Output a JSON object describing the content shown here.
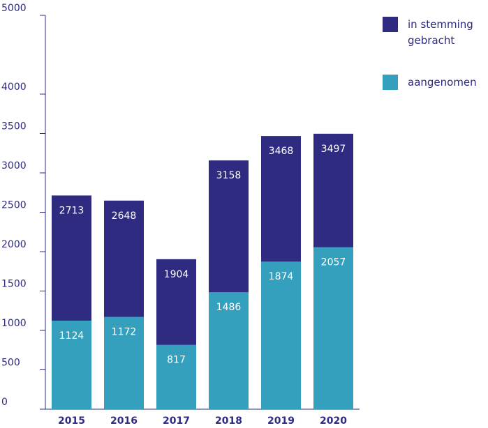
{
  "chart_data": {
    "type": "bar",
    "mode": "overlap",
    "categories": [
      "2015",
      "2016",
      "2017",
      "2018",
      "2019",
      "2020"
    ],
    "series": [
      {
        "name": "in stemming gebracht",
        "color": "#2e2b80",
        "values": [
          2713,
          2648,
          1904,
          3158,
          3468,
          3497
        ]
      },
      {
        "name": "aangenomen",
        "color": "#34a0bd",
        "values": [
          1124,
          1172,
          817,
          1486,
          1874,
          2057
        ]
      }
    ],
    "ylim": [
      0,
      5000
    ],
    "yticks": [
      0,
      500,
      1000,
      1500,
      2000,
      2500,
      3000,
      3500,
      4000,
      5000
    ],
    "legend": "top-right"
  }
}
